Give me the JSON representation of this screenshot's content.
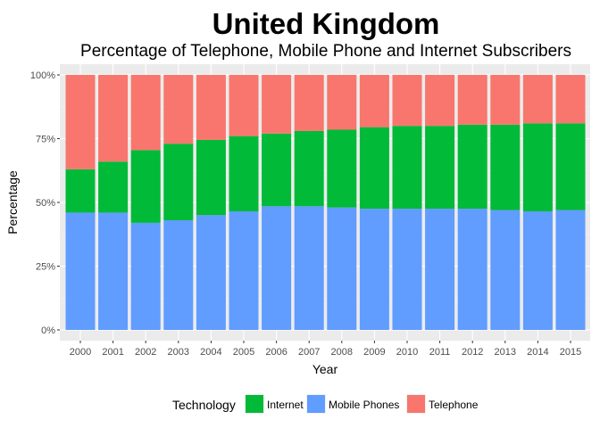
{
  "chart_data": {
    "type": "bar",
    "stacked": true,
    "title": "United Kingdom",
    "subtitle": "Percentage of Telephone, Mobile Phone and Internet Subscribers",
    "xlabel": "Year",
    "ylabel": "Percentage",
    "ylim": [
      0,
      100
    ],
    "yticks": [
      0,
      25,
      50,
      75,
      100
    ],
    "ytick_labels": [
      "0%",
      "25%",
      "50%",
      "75%",
      "100%"
    ],
    "categories": [
      "2000",
      "2001",
      "2002",
      "2003",
      "2004",
      "2005",
      "2006",
      "2007",
      "2008",
      "2009",
      "2010",
      "2011",
      "2012",
      "2013",
      "2014",
      "2015"
    ],
    "grid": true,
    "legend": {
      "title": "Technology",
      "placement": "bottom"
    },
    "series": [
      {
        "name": "Mobile Phones",
        "color": "#619CFF",
        "values": [
          46,
          46,
          42,
          43,
          45,
          46.5,
          48.5,
          48.5,
          48,
          47.5,
          47.5,
          47.5,
          47.5,
          47,
          46.5,
          47
        ]
      },
      {
        "name": "Internet",
        "color": "#00BA38",
        "values": [
          17,
          20,
          28.5,
          30,
          29.5,
          29.5,
          28.5,
          29.5,
          30.5,
          32,
          32.5,
          32.5,
          33,
          33.5,
          34.5,
          34
        ]
      },
      {
        "name": "Telephone",
        "color": "#F8766D",
        "values": [
          37,
          34,
          29.5,
          27,
          25.5,
          24,
          23,
          22,
          21.5,
          20.5,
          20,
          20,
          19.5,
          19.5,
          19,
          19
        ]
      }
    ],
    "legend_order": [
      "Internet",
      "Mobile Phones",
      "Telephone"
    ]
  }
}
